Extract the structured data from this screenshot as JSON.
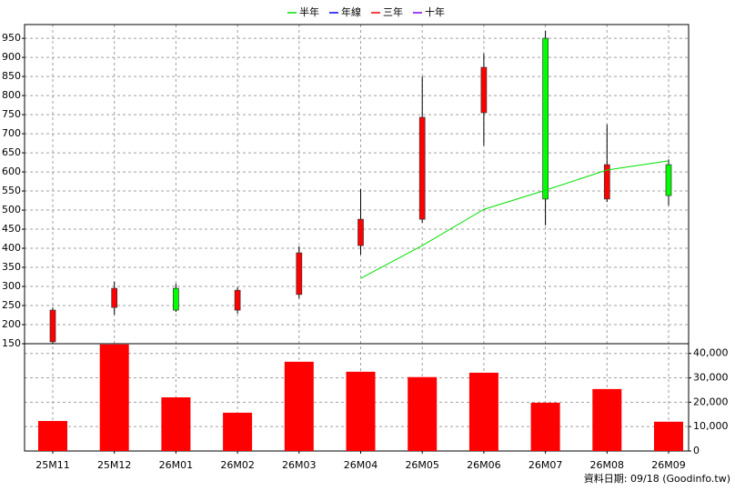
{
  "chart_data": {
    "type": "candlestick",
    "categories": [
      "25M11",
      "25M12",
      "26M01",
      "26M02",
      "26M03",
      "26M04",
      "26M05",
      "26M06",
      "26M07",
      "26M08",
      "26M09"
    ],
    "open": [
      155,
      245,
      295,
      238,
      279,
      407,
      476,
      755,
      950,
      529,
      619
    ],
    "high": [
      245,
      312,
      307,
      298,
      405,
      555,
      850,
      910,
      969,
      724,
      633
    ],
    "low": [
      150,
      226,
      233,
      229,
      269,
      383,
      467,
      669,
      460,
      521,
      512
    ],
    "close": [
      238,
      295,
      238,
      290,
      388,
      476,
      743,
      874,
      529,
      619,
      538
    ],
    "up_color": "#ff0000",
    "down_color": "#00ff00",
    "series": [
      {
        "name": "半年",
        "color": "#00e000",
        "values": [
          null,
          null,
          null,
          null,
          null,
          321,
          407,
          502,
          552,
          605,
          629
        ]
      },
      {
        "name": "年線",
        "color": "#0000ff",
        "values": [
          null,
          null,
          null,
          null,
          null,
          null,
          null,
          null,
          null,
          null,
          null
        ]
      },
      {
        "name": "三年",
        "color": "#ff0000",
        "values": [
          null,
          null,
          null,
          null,
          null,
          null,
          null,
          null,
          null,
          null,
          null
        ]
      },
      {
        "name": "十年",
        "color": "#8000ff",
        "values": [
          null,
          null,
          null,
          null,
          null,
          null,
          null,
          null,
          null,
          null,
          null
        ]
      }
    ],
    "ylim": [
      150,
      986
    ],
    "yticks": [
      150,
      200,
      250,
      300,
      350,
      400,
      450,
      500,
      550,
      600,
      650,
      700,
      750,
      800,
      850,
      900,
      950
    ],
    "grid": true,
    "volume": {
      "type": "bar",
      "color": "#ff0000",
      "values": [
        12300,
        43700,
        22000,
        15700,
        36600,
        32500,
        30300,
        32100,
        19800,
        25400,
        12000
      ],
      "ylim": [
        0,
        44000
      ],
      "yticks": [
        0,
        {
          "value": 10000,
          "label": "10,000"
        },
        {
          "value": 20000,
          "label": "20,000"
        },
        {
          "value": 30000,
          "label": "30,000"
        },
        {
          "value": 40000,
          "label": "40,000"
        }
      ]
    },
    "footer": "資料日期: 09/18 (Goodinfo.tw)"
  }
}
